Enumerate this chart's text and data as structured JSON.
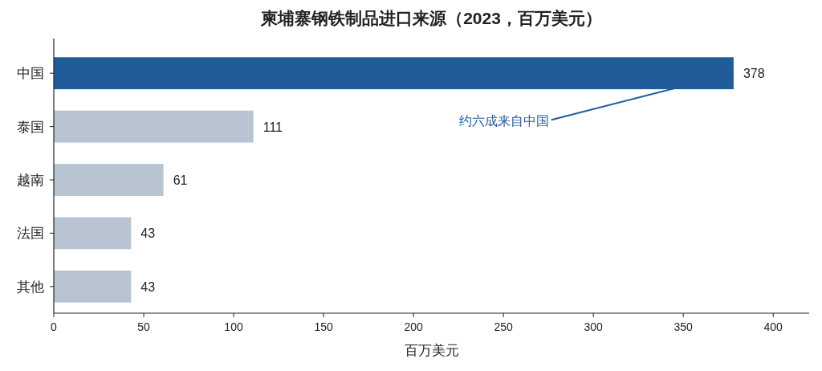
{
  "chart_data": {
    "type": "bar",
    "orientation": "horizontal",
    "title": "柬埔寨钢铁制品进口来源（2023，百万美元）",
    "xlabel": "百万美元",
    "categories": [
      "中国",
      "泰国",
      "越南",
      "法国",
      "其他"
    ],
    "values": [
      378,
      111,
      61,
      43,
      43
    ],
    "colors": [
      "#1f5c99",
      "#b8c4d2",
      "#b8c4d2",
      "#b8c4d2",
      "#b8c4d2"
    ],
    "xlim": [
      0,
      420
    ],
    "xticks": [
      0,
      50,
      100,
      150,
      200,
      250,
      300,
      350,
      400
    ],
    "data_labels": true,
    "annotations": [
      {
        "text": "约六成来自中国",
        "x": 378,
        "y": "中国"
      }
    ]
  }
}
